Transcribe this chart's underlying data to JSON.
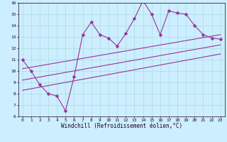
{
  "title": "",
  "xlabel": "Windchill (Refroidissement éolien,°C)",
  "xlim": [
    -0.5,
    23.5
  ],
  "ylim": [
    6,
    16
  ],
  "xticks": [
    0,
    1,
    2,
    3,
    4,
    5,
    6,
    7,
    8,
    9,
    10,
    11,
    12,
    13,
    14,
    15,
    16,
    17,
    18,
    19,
    20,
    21,
    22,
    23
  ],
  "yticks": [
    6,
    7,
    8,
    9,
    10,
    11,
    12,
    13,
    14,
    15,
    16
  ],
  "bg_color": "#cceeff",
  "line_color": "#993399",
  "grid_color": "#aadddd",
  "scatter_x": [
    0,
    1,
    2,
    3,
    4,
    5,
    6,
    7,
    8,
    9,
    10,
    11,
    12,
    13,
    14,
    15,
    16,
    17,
    18,
    19,
    20,
    21,
    22,
    23
  ],
  "scatter_y": [
    11,
    10,
    8.8,
    8.0,
    7.8,
    6.5,
    9.5,
    13.2,
    14.3,
    13.2,
    12.9,
    12.2,
    13.3,
    14.6,
    16.2,
    15.0,
    13.2,
    15.3,
    15.1,
    15.0,
    14.0,
    13.2,
    12.9,
    12.8
  ],
  "trend1_x": [
    0,
    23
  ],
  "trend1_y": [
    10.2,
    13.2
  ],
  "trend2_x": [
    0,
    23
  ],
  "trend2_y": [
    9.2,
    12.3
  ],
  "trend3_x": [
    0,
    23
  ],
  "trend3_y": [
    8.3,
    11.5
  ],
  "marker": "D",
  "markersize": 2.5,
  "linewidth": 0.8,
  "tick_fontsize": 4.5,
  "label_fontsize": 5.5
}
